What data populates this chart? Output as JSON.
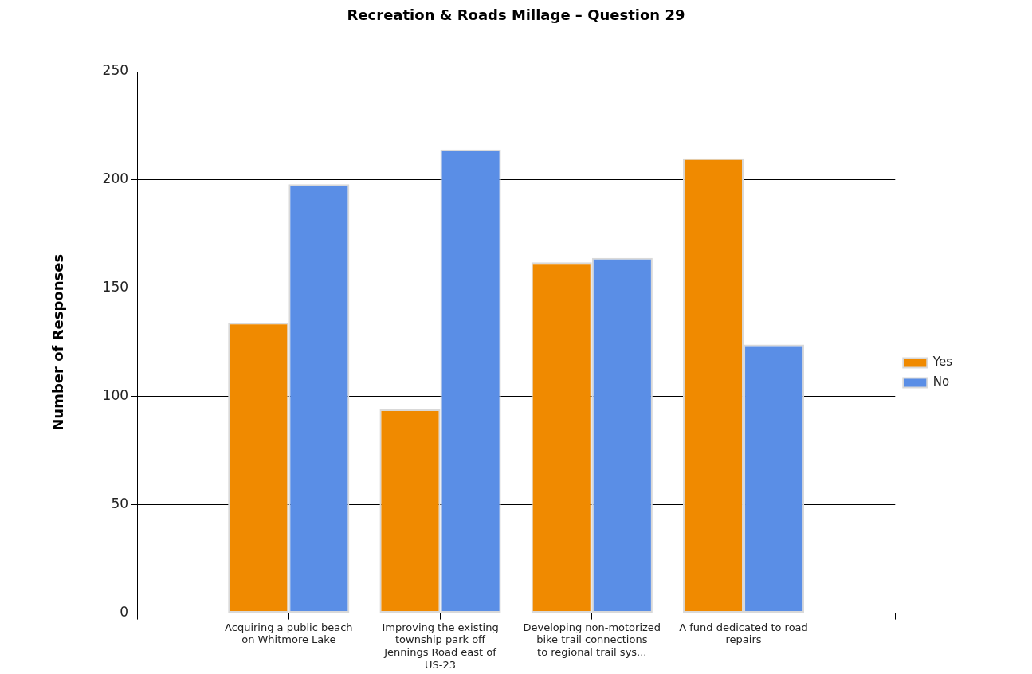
{
  "chart_data": {
    "type": "bar",
    "title": "Recreation & Roads Millage – Question 29",
    "ylabel": "Number of Responses",
    "categories": [
      null,
      "Acquiring a public beach on Whitmore Lake",
      "Improving the existing township park off Jennings Road east of US-23",
      "Developing non-motorized bike trail connections to regional trail sys...",
      "A fund dedicated to road repairs",
      null
    ],
    "series": [
      {
        "name": "Yes",
        "color": "#f08a00",
        "values": [
          null,
          134,
          94,
          162,
          210,
          null
        ]
      },
      {
        "name": "No",
        "color": "#5a8ee6",
        "values": [
          null,
          198,
          214,
          164,
          124,
          null
        ]
      }
    ],
    "ylim": [
      0,
      250
    ],
    "yticks": [
      0,
      50,
      100,
      150,
      200,
      250
    ],
    "grid": "y",
    "legend": "right"
  }
}
